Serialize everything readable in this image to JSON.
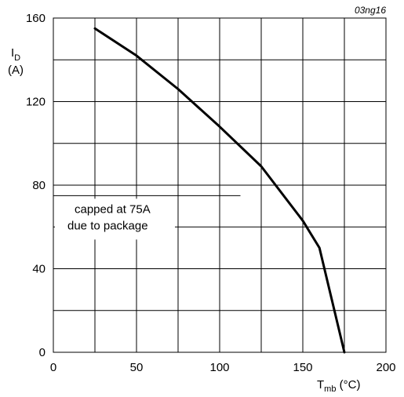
{
  "figure_id": "03ng16",
  "chart_data": {
    "type": "line",
    "title": "",
    "xlabel": {
      "main": "T",
      "sub": "mb",
      "unit": " (°C)"
    },
    "ylabel": {
      "main": "I",
      "sub": "D",
      "unit": "(A)"
    },
    "xlim": [
      0,
      200
    ],
    "ylim": [
      0,
      160
    ],
    "x_ticks": [
      0,
      50,
      100,
      150,
      200
    ],
    "y_ticks": [
      0,
      40,
      80,
      120,
      160
    ],
    "x_grid_step": 25,
    "y_grid_step": 20,
    "grid": true,
    "series": [
      {
        "x": [
          25,
          50,
          75,
          100,
          125,
          150,
          160,
          175
        ],
        "y": [
          155,
          142,
          126,
          108,
          89,
          63,
          50,
          0
        ]
      }
    ],
    "annotation": {
      "lines": [
        "capped at 75A",
        "due to package"
      ],
      "cap_value": 75
    },
    "line_color": "#000000"
  }
}
